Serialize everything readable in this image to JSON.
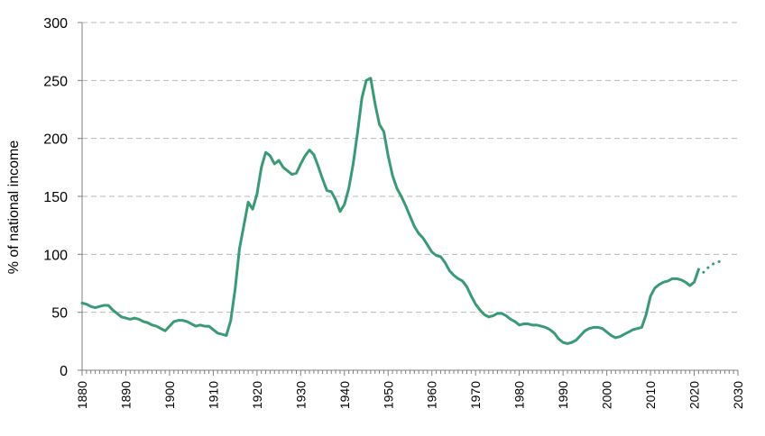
{
  "chart_data": {
    "type": "line",
    "title": "",
    "xlabel": "",
    "ylabel": "% of national income",
    "xlim": [
      1880,
      2030
    ],
    "ylim": [
      0,
      300
    ],
    "yticks": [
      0,
      50,
      100,
      150,
      200,
      250,
      300
    ],
    "xticks": [
      1880,
      1890,
      1900,
      1910,
      1920,
      1930,
      1940,
      1950,
      1960,
      1970,
      1980,
      1990,
      2000,
      2010,
      2020,
      2030
    ],
    "grid": true,
    "legend": "none",
    "color": "#3a9a75",
    "series": [
      {
        "style": "solid",
        "x": [
          1880,
          1881,
          1882,
          1883,
          1884,
          1885,
          1886,
          1887,
          1888,
          1889,
          1890,
          1891,
          1892,
          1893,
          1894,
          1895,
          1896,
          1897,
          1898,
          1899,
          1900,
          1901,
          1902,
          1903,
          1904,
          1905,
          1906,
          1907,
          1908,
          1909,
          1910,
          1911,
          1912,
          1913,
          1914,
          1915,
          1916,
          1917,
          1918,
          1919,
          1920,
          1921,
          1922,
          1923,
          1924,
          1925,
          1926,
          1927,
          1928,
          1929,
          1930,
          1931,
          1932,
          1933,
          1934,
          1935,
          1936,
          1937,
          1938,
          1939,
          1940,
          1941,
          1942,
          1943,
          1944,
          1945,
          1946,
          1947,
          1948,
          1949,
          1950,
          1951,
          1952,
          1953,
          1954,
          1955,
          1956,
          1957,
          1958,
          1959,
          1960,
          1961,
          1962,
          1963,
          1964,
          1965,
          1966,
          1967,
          1968,
          1969,
          1970,
          1971,
          1972,
          1973,
          1974,
          1975,
          1976,
          1977,
          1978,
          1979,
          1980,
          1981,
          1982,
          1983,
          1984,
          1985,
          1986,
          1987,
          1988,
          1989,
          1990,
          1991,
          1992,
          1993,
          1994,
          1995,
          1996,
          1997,
          1998,
          1999,
          2000,
          2001,
          2002,
          2003,
          2004,
          2005,
          2006,
          2007,
          2008,
          2009,
          2010,
          2011,
          2012,
          2013,
          2014,
          2015,
          2016,
          2017,
          2018,
          2019,
          2020,
          2021
        ],
        "y": [
          58,
          57,
          55,
          54,
          55,
          56,
          56,
          52,
          49,
          46,
          45,
          44,
          45,
          44,
          42,
          41,
          39,
          38,
          36,
          34,
          38,
          42,
          43,
          43,
          42,
          40,
          38,
          39,
          38,
          38,
          35,
          32,
          31,
          30,
          43,
          70,
          105,
          125,
          145,
          139,
          152,
          175,
          188,
          185,
          178,
          181,
          175,
          172,
          169,
          170,
          178,
          185,
          190,
          186,
          176,
          165,
          155,
          154,
          147,
          137,
          143,
          157,
          178,
          205,
          235,
          250,
          252,
          230,
          212,
          206,
          185,
          168,
          157,
          150,
          142,
          133,
          124,
          118,
          114,
          108,
          102,
          99,
          98,
          93,
          86,
          82,
          79,
          77,
          72,
          64,
          57,
          52,
          48,
          46,
          47,
          49,
          49,
          47,
          44,
          42,
          39,
          40,
          40,
          39,
          39,
          38,
          37,
          35,
          32,
          27,
          24,
          23,
          24,
          26,
          30,
          34,
          36,
          37,
          37,
          36,
          33,
          30,
          28,
          29,
          31,
          33,
          35,
          36,
          37,
          48,
          64,
          71,
          74,
          76,
          77,
          79,
          79,
          78,
          76,
          73,
          76,
          87
        ]
      },
      {
        "style": "dotted",
        "x": [
          2021,
          2022,
          2023,
          2024,
          2025,
          2026,
          2027
        ],
        "y": [
          87,
          84,
          88,
          91,
          93,
          94,
          95
        ]
      }
    ]
  }
}
